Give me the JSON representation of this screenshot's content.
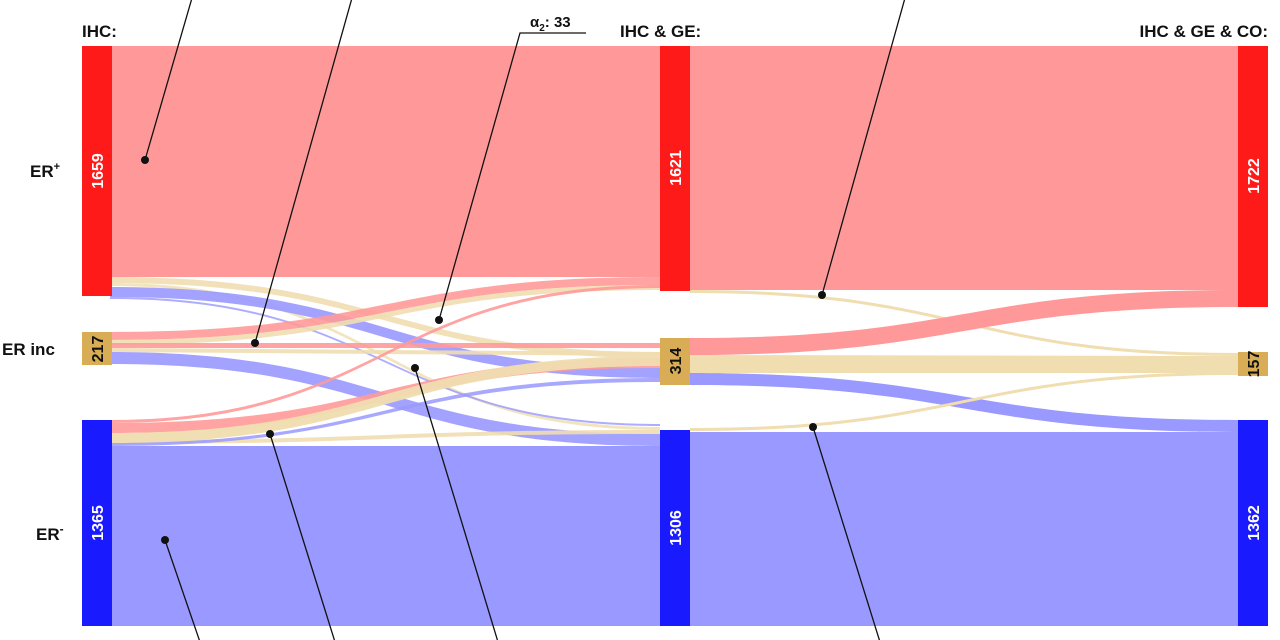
{
  "columns": [
    "IHC:",
    "IHC & GE:",
    "IHC & GE & CO:"
  ],
  "row_labels": {
    "pos": "ER",
    "pos_sup": "+",
    "inc": "ER inc",
    "neg": "ER",
    "neg_sup": "-"
  },
  "nodes": {
    "ihc": {
      "pos": "1659",
      "inc": "217",
      "neg": "1365"
    },
    "ge": {
      "pos": "1621",
      "inc": "314",
      "neg": "1306"
    },
    "co": {
      "pos": "1722",
      "inc": "157",
      "neg": "1362"
    }
  },
  "annotation": {
    "prefix": "α",
    "sub": "2",
    "suffix": ": 33"
  },
  "colors": {
    "pos": "#ff1a1a",
    "inc": "#d8ad55",
    "neg": "#1a1aff",
    "pos_flow": "#ff9999",
    "inc_flow": "#f0ddb0",
    "neg_flow": "#9999ff"
  },
  "chart_data": {
    "type": "sankey",
    "stages": [
      "IHC:",
      "IHC & GE:",
      "IHC & GE & CO:"
    ],
    "categories": [
      "ER+",
      "ER inc",
      "ER-"
    ],
    "node_values": {
      "IHC": {
        "ER+": 1659,
        "ER inc": 217,
        "ER-": 1365
      },
      "IHC & GE": {
        "ER+": 1621,
        "ER inc": 314,
        "ER-": 1306
      },
      "IHC & GE & CO": {
        "ER+": 1722,
        "ER inc": 157,
        "ER-": 1362
      }
    },
    "annotations": [
      {
        "label": "α2: 33",
        "value": 33
      }
    ]
  }
}
